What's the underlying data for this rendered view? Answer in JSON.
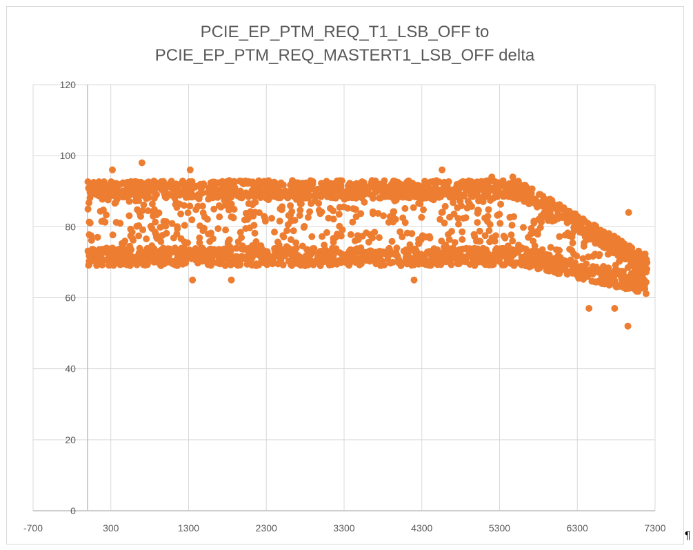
{
  "chart_data": {
    "type": "scatter",
    "title_line1": "PCIE_EP_PTM_REQ_T1_LSB_OFF to",
    "title_line2": "PCIE_EP_PTM_REQ_MASTERT1_LSB_OFF  delta",
    "xlim": [
      -700,
      7300
    ],
    "ylim": [
      0,
      120
    ],
    "x_ticks": [
      "-700",
      "300",
      "1300",
      "2300",
      "3300",
      "4300",
      "5300",
      "6300",
      "7300"
    ],
    "y_ticks": [
      "0",
      "20",
      "40",
      "60",
      "80",
      "100",
      "120"
    ],
    "grid": true,
    "legend": "none",
    "marker_color": "#ed7d31",
    "x_range": [
      0,
      7200
    ],
    "y_band": {
      "low": 69,
      "high": 93
    },
    "outliers": [
      {
        "x": 320,
        "y": 96
      },
      {
        "x": 700,
        "y": 98
      },
      {
        "x": 1350,
        "y": 65
      },
      {
        "x": 1850,
        "y": 65
      },
      {
        "x": 1320,
        "y": 96
      },
      {
        "x": 4560,
        "y": 96
      },
      {
        "x": 4200,
        "y": 65
      },
      {
        "x": 6450,
        "y": 57
      },
      {
        "x": 6780,
        "y": 57
      },
      {
        "x": 6950,
        "y": 52
      },
      {
        "x": 6960,
        "y": 84
      },
      {
        "x": 5200,
        "y": 94
      },
      {
        "x": 5470,
        "y": 94
      }
    ]
  },
  "footer": {
    "pilcrow": "¶"
  }
}
